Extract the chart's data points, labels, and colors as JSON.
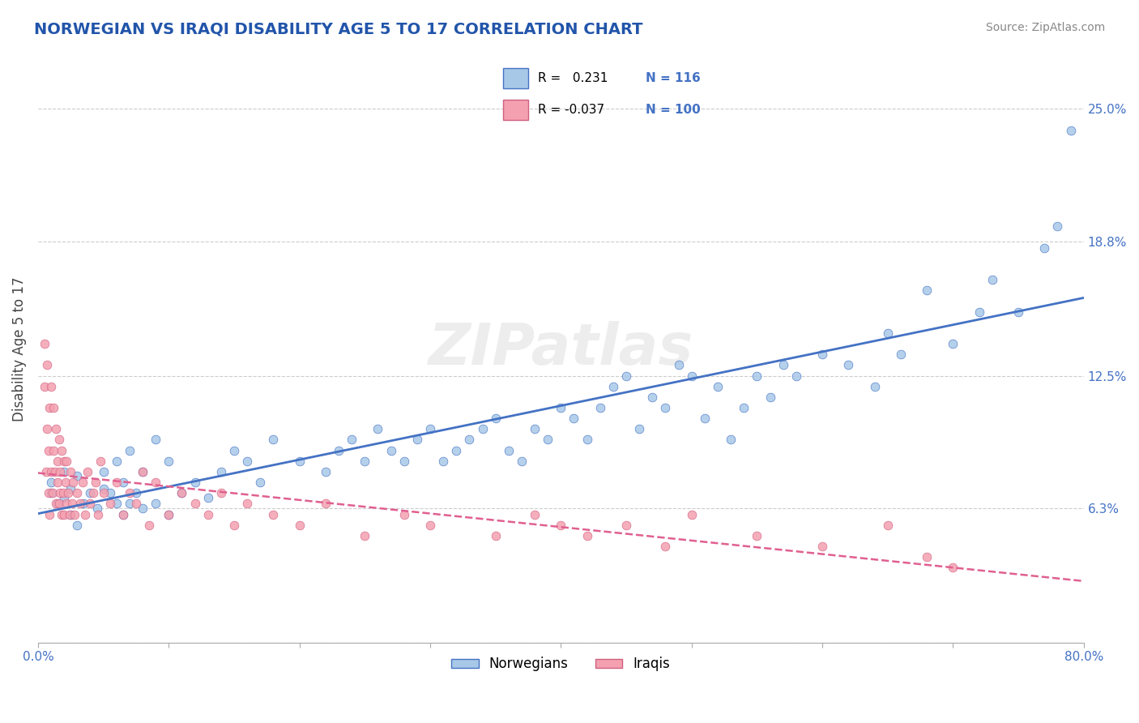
{
  "title": "NORWEGIAN VS IRAQI DISABILITY AGE 5 TO 17 CORRELATION CHART",
  "source_text": "Source: ZipAtlas.com",
  "xlabel": "",
  "ylabel": "Disability Age 5 to 17",
  "xlim": [
    0.0,
    0.8
  ],
  "ylim": [
    0.0,
    0.275
  ],
  "yticks": [
    0.0,
    0.063,
    0.125,
    0.188,
    0.25
  ],
  "ytick_labels": [
    "",
    "6.3%",
    "12.5%",
    "18.8%",
    "25.0%"
  ],
  "xtick_labels": [
    "0.0%",
    "",
    "",
    "",
    "",
    "",
    "",
    "",
    "80.0%"
  ],
  "R_norwegian": 0.231,
  "N_norwegian": 116,
  "R_iraqi": -0.037,
  "N_iraqi": 100,
  "norwegian_color": "#a8c8e8",
  "iraqi_color": "#f4a0b0",
  "norwegian_line_color": "#4472c4",
  "iraqi_line_color": "#e06090",
  "background_color": "#ffffff",
  "grid_color": "#cccccc",
  "title_color": "#2255aa",
  "watermark": "ZIPatlas",
  "seed": 42,
  "norwegian_x": [
    0.01,
    0.01,
    0.015,
    0.02,
    0.02,
    0.025,
    0.025,
    0.03,
    0.03,
    0.035,
    0.04,
    0.045,
    0.05,
    0.05,
    0.055,
    0.06,
    0.06,
    0.065,
    0.065,
    0.07,
    0.07,
    0.075,
    0.08,
    0.08,
    0.09,
    0.09,
    0.1,
    0.1,
    0.11,
    0.12,
    0.13,
    0.14,
    0.15,
    0.16,
    0.17,
    0.18,
    0.2,
    0.22,
    0.23,
    0.24,
    0.25,
    0.26,
    0.27,
    0.28,
    0.29,
    0.3,
    0.31,
    0.32,
    0.33,
    0.34,
    0.35,
    0.36,
    0.37,
    0.38,
    0.39,
    0.4,
    0.41,
    0.42,
    0.43,
    0.44,
    0.45,
    0.46,
    0.47,
    0.48,
    0.49,
    0.5,
    0.51,
    0.52,
    0.53,
    0.54,
    0.55,
    0.56,
    0.57,
    0.58,
    0.6,
    0.62,
    0.64,
    0.65,
    0.66,
    0.68,
    0.7,
    0.72,
    0.73,
    0.75,
    0.77,
    0.78,
    0.79
  ],
  "norwegian_y": [
    0.07,
    0.075,
    0.065,
    0.068,
    0.08,
    0.06,
    0.072,
    0.055,
    0.078,
    0.065,
    0.07,
    0.063,
    0.072,
    0.08,
    0.07,
    0.065,
    0.085,
    0.06,
    0.075,
    0.065,
    0.09,
    0.07,
    0.063,
    0.08,
    0.065,
    0.095,
    0.06,
    0.085,
    0.07,
    0.075,
    0.068,
    0.08,
    0.09,
    0.085,
    0.075,
    0.095,
    0.085,
    0.08,
    0.09,
    0.095,
    0.085,
    0.1,
    0.09,
    0.085,
    0.095,
    0.1,
    0.085,
    0.09,
    0.095,
    0.1,
    0.105,
    0.09,
    0.085,
    0.1,
    0.095,
    0.11,
    0.105,
    0.095,
    0.11,
    0.12,
    0.125,
    0.1,
    0.115,
    0.11,
    0.13,
    0.125,
    0.105,
    0.12,
    0.095,
    0.11,
    0.125,
    0.115,
    0.13,
    0.125,
    0.135,
    0.13,
    0.12,
    0.145,
    0.135,
    0.165,
    0.14,
    0.155,
    0.17,
    0.155,
    0.185,
    0.195,
    0.24
  ],
  "iraqi_x": [
    0.005,
    0.005,
    0.006,
    0.007,
    0.007,
    0.008,
    0.008,
    0.009,
    0.009,
    0.01,
    0.01,
    0.011,
    0.012,
    0.012,
    0.013,
    0.014,
    0.014,
    0.015,
    0.015,
    0.016,
    0.016,
    0.017,
    0.017,
    0.018,
    0.018,
    0.019,
    0.02,
    0.02,
    0.021,
    0.022,
    0.022,
    0.023,
    0.024,
    0.025,
    0.026,
    0.027,
    0.028,
    0.03,
    0.032,
    0.034,
    0.036,
    0.038,
    0.04,
    0.042,
    0.044,
    0.046,
    0.048,
    0.05,
    0.055,
    0.06,
    0.065,
    0.07,
    0.075,
    0.08,
    0.085,
    0.09,
    0.1,
    0.11,
    0.12,
    0.13,
    0.14,
    0.15,
    0.16,
    0.18,
    0.2,
    0.22,
    0.25,
    0.28,
    0.3,
    0.35,
    0.38,
    0.4,
    0.42,
    0.45,
    0.48,
    0.5,
    0.55,
    0.6,
    0.65,
    0.68,
    0.7
  ],
  "iraqi_y": [
    0.12,
    0.14,
    0.08,
    0.1,
    0.13,
    0.07,
    0.09,
    0.11,
    0.06,
    0.08,
    0.12,
    0.07,
    0.09,
    0.11,
    0.08,
    0.065,
    0.1,
    0.075,
    0.085,
    0.065,
    0.095,
    0.07,
    0.08,
    0.06,
    0.09,
    0.07,
    0.06,
    0.085,
    0.075,
    0.065,
    0.085,
    0.07,
    0.06,
    0.08,
    0.065,
    0.075,
    0.06,
    0.07,
    0.065,
    0.075,
    0.06,
    0.08,
    0.065,
    0.07,
    0.075,
    0.06,
    0.085,
    0.07,
    0.065,
    0.075,
    0.06,
    0.07,
    0.065,
    0.08,
    0.055,
    0.075,
    0.06,
    0.07,
    0.065,
    0.06,
    0.07,
    0.055,
    0.065,
    0.06,
    0.055,
    0.065,
    0.05,
    0.06,
    0.055,
    0.05,
    0.06,
    0.055,
    0.05,
    0.055,
    0.045,
    0.06,
    0.05,
    0.045,
    0.055,
    0.04,
    0.035
  ]
}
